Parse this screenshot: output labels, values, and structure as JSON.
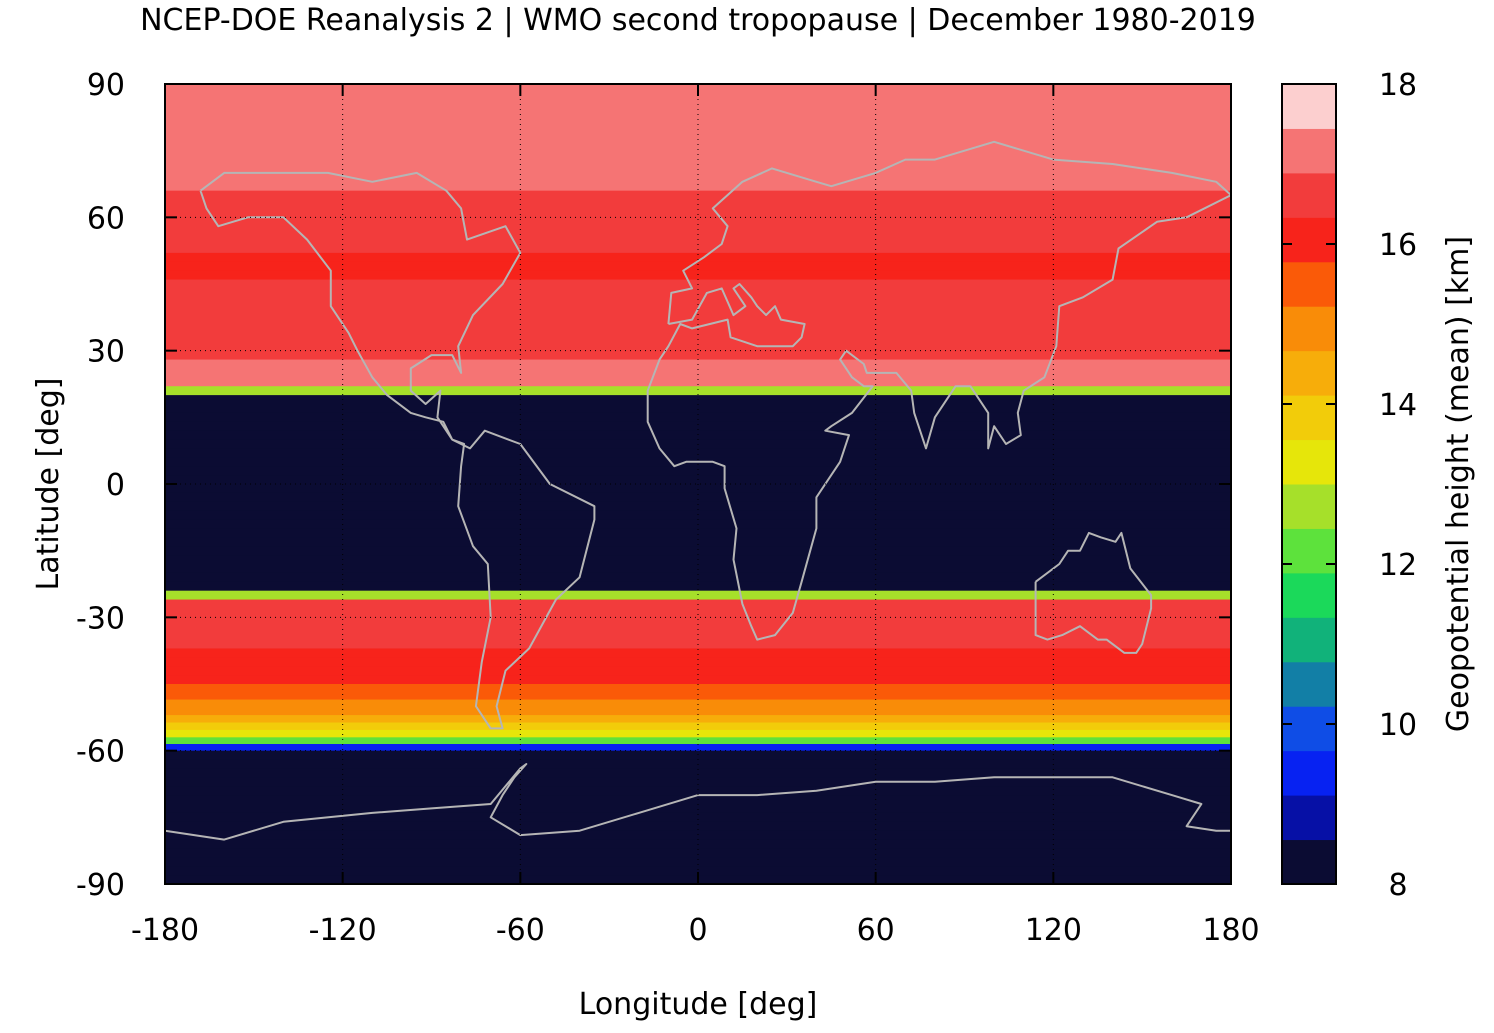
{
  "chart_data": {
    "type": "heatmap",
    "title": "NCEP-DOE Reanalysis 2 | WMO second tropopause | December 1980-2019",
    "xlabel": "Longitude [deg]",
    "ylabel": "Latitude [deg]",
    "colorbar_label": "Geopotential height (mean) [km]",
    "xlim": [
      -180,
      180
    ],
    "ylim": [
      -90,
      90
    ],
    "x_ticks": [
      -180,
      -120,
      -60,
      0,
      60,
      120,
      180
    ],
    "y_ticks": [
      -90,
      -60,
      -30,
      0,
      30,
      60,
      90
    ],
    "x_tick_labels": [
      "-180",
      "-120",
      "-60",
      "0",
      "60",
      "120",
      "180"
    ],
    "y_tick_labels": [
      "-90",
      "-60",
      "-30",
      "0",
      "30",
      "60",
      "90"
    ],
    "grid": true,
    "colorbar": {
      "range": [
        8,
        18
      ],
      "ticks": [
        8,
        10,
        12,
        14,
        16,
        18
      ],
      "tick_labels": [
        "8",
        "10",
        "12",
        "14",
        "16",
        "18"
      ],
      "colors": [
        "#0b0c33",
        "#0610a6",
        "#0722f2",
        "#0f4de6",
        "#127fa6",
        "#11b27a",
        "#1bd95a",
        "#5de23c",
        "#a6e02a",
        "#e6e60a",
        "#f2cc0a",
        "#f7ad0a",
        "#f98c08",
        "#fa5a08",
        "#f7231b",
        "#f23c3c",
        "#f57474",
        "#fccfcf"
      ]
    },
    "zonal_profile": [
      {
        "lat": 90,
        "value": 16.9
      },
      {
        "lat": 80,
        "value": 17.4
      },
      {
        "lat": 70,
        "value": 17.2
      },
      {
        "lat": 60,
        "value": 16.5
      },
      {
        "lat": 50,
        "value": 16.3
      },
      {
        "lat": 40,
        "value": 16.4
      },
      {
        "lat": 30,
        "value": 16.8
      },
      {
        "lat": 22,
        "value": 17.4
      },
      {
        "lat": 20,
        "value": 8.0
      },
      {
        "lat": 0,
        "value": 8.0
      },
      {
        "lat": -24,
        "value": 8.0
      },
      {
        "lat": -26,
        "value": 16.9
      },
      {
        "lat": -35,
        "value": 16.4
      },
      {
        "lat": -45,
        "value": 15.8
      },
      {
        "lat": -52,
        "value": 14.7
      },
      {
        "lat": -57,
        "value": 13.2
      },
      {
        "lat": -60,
        "value": 8.0
      },
      {
        "lat": -90,
        "value": 8.0
      }
    ]
  }
}
